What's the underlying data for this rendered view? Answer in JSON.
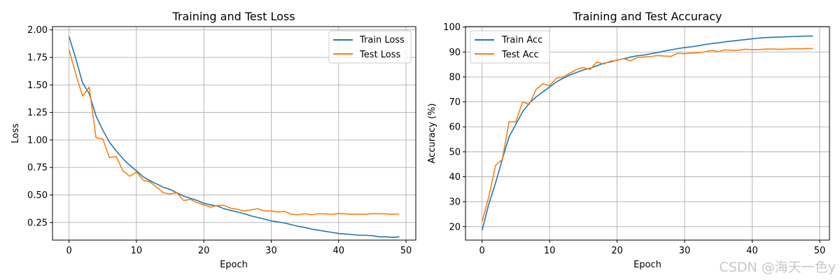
{
  "watermark": "CSDN @海天一色y",
  "colors": {
    "train": "#1f77b4",
    "test": "#ff7f0e",
    "grid": "#b0b0b0",
    "axis": "#000000"
  },
  "chart_data": [
    {
      "type": "line",
      "title": "Training and Test Loss",
      "xlabel": "Epoch",
      "ylabel": "Loss",
      "xlim": [
        -2.45,
        51.45
      ],
      "ylim": [
        0.09,
        2.03
      ],
      "xticks": [
        0,
        10,
        20,
        30,
        40,
        50
      ],
      "yticks": [
        0.25,
        0.5,
        0.75,
        1.0,
        1.25,
        1.5,
        1.75,
        2.0
      ],
      "ytick_labels": [
        "0.25",
        "0.50",
        "0.75",
        "1.00",
        "1.25",
        "1.50",
        "1.75",
        "2.00"
      ],
      "xtick_labels": [
        "0",
        "10",
        "20",
        "30",
        "40",
        "50"
      ],
      "grid": true,
      "legend": "top-right",
      "x": [
        0,
        1,
        2,
        3,
        4,
        5,
        6,
        7,
        8,
        9,
        10,
        11,
        12,
        13,
        14,
        15,
        16,
        17,
        18,
        19,
        20,
        21,
        22,
        23,
        24,
        25,
        26,
        27,
        28,
        29,
        30,
        31,
        32,
        33,
        34,
        35,
        36,
        37,
        38,
        39,
        40,
        41,
        42,
        43,
        44,
        45,
        46,
        47,
        48,
        49
      ],
      "series": [
        {
          "name": "Train Loss",
          "color_key": "train",
          "values": [
            1.94,
            1.74,
            1.52,
            1.42,
            1.22,
            1.09,
            0.98,
            0.9,
            0.83,
            0.77,
            0.72,
            0.665,
            0.63,
            0.6,
            0.57,
            0.55,
            0.52,
            0.49,
            0.47,
            0.45,
            0.425,
            0.41,
            0.4,
            0.375,
            0.36,
            0.345,
            0.33,
            0.31,
            0.295,
            0.28,
            0.265,
            0.255,
            0.245,
            0.23,
            0.215,
            0.205,
            0.19,
            0.18,
            0.17,
            0.16,
            0.15,
            0.145,
            0.14,
            0.135,
            0.133,
            0.13,
            0.12,
            0.12,
            0.115,
            0.12
          ]
        },
        {
          "name": "Test Loss",
          "color_key": "test",
          "values": [
            1.82,
            1.6,
            1.4,
            1.48,
            1.02,
            1.01,
            0.84,
            0.85,
            0.72,
            0.67,
            0.71,
            0.635,
            0.62,
            0.57,
            0.52,
            0.51,
            0.52,
            0.45,
            0.46,
            0.43,
            0.41,
            0.39,
            0.405,
            0.405,
            0.38,
            0.37,
            0.355,
            0.365,
            0.375,
            0.355,
            0.355,
            0.345,
            0.35,
            0.325,
            0.32,
            0.33,
            0.32,
            0.33,
            0.328,
            0.323,
            0.332,
            0.328,
            0.325,
            0.325,
            0.325,
            0.33,
            0.33,
            0.328,
            0.325,
            0.327
          ]
        }
      ]
    },
    {
      "type": "line",
      "title": "Training and Test Accuracy",
      "xlabel": "Epoch",
      "ylabel": "Accuracy (%)",
      "xlim": [
        -2.45,
        51.45
      ],
      "ylim": [
        14.6,
        100.2
      ],
      "xticks": [
        0,
        10,
        20,
        30,
        40,
        50
      ],
      "yticks": [
        20,
        30,
        40,
        50,
        60,
        70,
        80,
        90,
        100
      ],
      "ytick_labels": [
        "20",
        "30",
        "40",
        "50",
        "60",
        "70",
        "80",
        "90",
        "100"
      ],
      "xtick_labels": [
        "0",
        "10",
        "20",
        "30",
        "40",
        "50"
      ],
      "grid": true,
      "legend": "top-left",
      "x": [
        0,
        1,
        2,
        3,
        4,
        5,
        6,
        7,
        8,
        9,
        10,
        11,
        12,
        13,
        14,
        15,
        16,
        17,
        18,
        19,
        20,
        21,
        22,
        23,
        24,
        25,
        26,
        27,
        28,
        29,
        30,
        31,
        32,
        33,
        34,
        35,
        36,
        37,
        38,
        39,
        40,
        41,
        42,
        43,
        44,
        45,
        46,
        47,
        48,
        49
      ],
      "series": [
        {
          "name": "Train Acc",
          "color_key": "train",
          "values": [
            18.5,
            29.0,
            37.5,
            47.0,
            56.0,
            61.0,
            66.0,
            69.5,
            72.0,
            74.0,
            76.0,
            78.0,
            79.5,
            80.8,
            81.8,
            82.8,
            83.5,
            84.5,
            85.5,
            86.0,
            86.8,
            87.3,
            88.0,
            88.5,
            88.8,
            89.3,
            89.8,
            90.4,
            90.9,
            91.4,
            91.8,
            92.1,
            92.5,
            93.0,
            93.4,
            93.7,
            94.1,
            94.4,
            94.7,
            95.0,
            95.3,
            95.6,
            95.8,
            95.9,
            96.0,
            96.1,
            96.2,
            96.3,
            96.4,
            96.4
          ]
        },
        {
          "name": "Test Acc",
          "color_key": "test",
          "values": [
            22.0,
            32.0,
            44.5,
            47.0,
            62.0,
            62.0,
            70.0,
            69.0,
            75.0,
            77.3,
            76.5,
            79.5,
            80.0,
            81.5,
            83.0,
            83.8,
            83.0,
            86.0,
            85.2,
            86.3,
            86.7,
            87.3,
            86.5,
            87.8,
            88.0,
            88.2,
            88.6,
            88.4,
            88.3,
            89.5,
            89.3,
            89.6,
            89.7,
            90.1,
            90.6,
            90.2,
            90.9,
            90.7,
            90.7,
            91.1,
            91.0,
            91.0,
            91.2,
            91.2,
            91.1,
            91.2,
            91.3,
            91.3,
            91.4,
            91.4
          ]
        }
      ]
    }
  ]
}
